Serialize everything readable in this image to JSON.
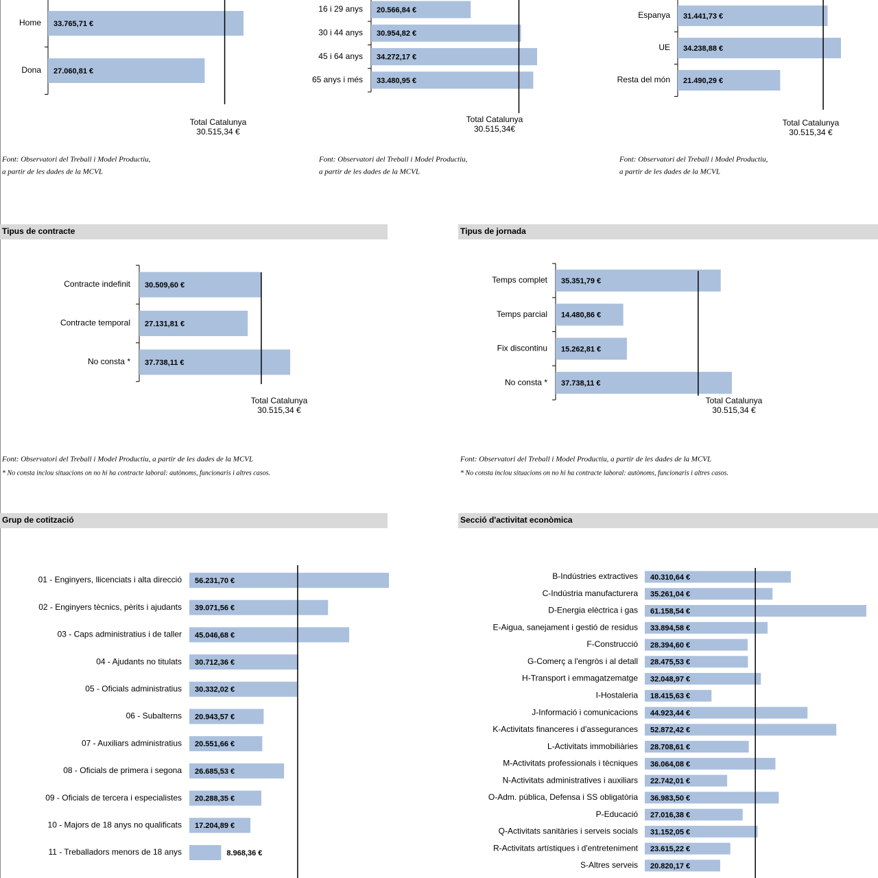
{
  "chart_data": [
    {
      "type": "bar",
      "orientation": "horizontal",
      "color": "#abc0dd",
      "categories": [
        "Home",
        "Dona"
      ],
      "values": [
        33765.71,
        27060.81
      ],
      "value_labels": [
        "33.765,71 €",
        "27.060,81 €"
      ],
      "reference_line": {
        "label": "Total Catalunya",
        "value": 30515.34,
        "value_label": "30.515,34 €"
      },
      "source": [
        "Font: Observatori del Treball i Model Productiu,",
        "a partir de les dades de la MCVL"
      ]
    },
    {
      "type": "bar",
      "orientation": "horizontal",
      "color": "#abc0dd",
      "categories": [
        "16 i 29 anys",
        "30 i 44 anys",
        "45 i 64 anys",
        "65 anys i més"
      ],
      "values": [
        20566.84,
        30954.82,
        34272.17,
        33480.95
      ],
      "value_labels": [
        "20.566,84 €",
        "30.954,82 €",
        "34.272,17 €",
        "33.480,95 €"
      ],
      "reference_line": {
        "label": "Total Catalunya",
        "value": 30515.34,
        "value_label": "30.515,34€"
      },
      "source": [
        "Font: Observatori del Treball i Model Productiu,",
        "a partir de les dades de la MCVL"
      ]
    },
    {
      "type": "bar",
      "orientation": "horizontal",
      "color": "#abc0dd",
      "categories": [
        "Espanya",
        "UE",
        "Resta del món"
      ],
      "values": [
        31441.73,
        34238.88,
        21490.29
      ],
      "value_labels": [
        "31.441,73 €",
        "34.238,88 €",
        "21.490,29 €"
      ],
      "reference_line": {
        "label": "Total Catalunya",
        "value": 30515.34,
        "value_label": "30.515,34 €"
      },
      "source": [
        "Font: Observatori del Treball i Model Productiu,",
        "a partir de les dades de la MCVL"
      ]
    },
    {
      "type": "bar",
      "orientation": "horizontal",
      "color": "#abc0dd",
      "title": "Tipus de contracte",
      "categories": [
        "Contracte indefinit",
        "Contracte temporal",
        "No consta *"
      ],
      "values": [
        30509.6,
        27131.81,
        37738.11
      ],
      "value_labels": [
        "30.509,60 €",
        "27.131,81 €",
        "37.738,11 €"
      ],
      "reference_line": {
        "label": "Total Catalunya",
        "value": 30515.34,
        "value_label": "30.515,34 €"
      },
      "source": [
        "Font: Observatori del Treball i Model Productiu, a partir de les dades de la MCVL",
        "* No consta inclou situacions on no hi ha contracte laboral: autònoms, funcionaris i altres casos."
      ]
    },
    {
      "type": "bar",
      "orientation": "horizontal",
      "color": "#abc0dd",
      "title": "Tipus de jornada",
      "categories": [
        "Temps complet",
        "Temps parcial",
        "Fix discontinu",
        "No consta *"
      ],
      "values": [
        35351.79,
        14480.86,
        15262.81,
        37738.11
      ],
      "value_labels": [
        "35.351,79 €",
        "14.480,86 €",
        "15.262,81 €",
        "37.738,11 €"
      ],
      "reference_line": {
        "label": "Total Catalunya",
        "value": 30515.34,
        "value_label": "30.515,34 €"
      },
      "source": [
        "Font: Observatori del Treball i Model Productiu, a partir de les dades de la MCVL",
        "* No consta inclou situacions on no hi ha contracte laboral: autònoms, funcionaris i altres casos."
      ]
    },
    {
      "type": "bar",
      "orientation": "horizontal",
      "color": "#abc0dd",
      "title": "Grup de cotització",
      "categories": [
        "01 - Enginyers, llicenciats i alta direcció",
        "02 - Enginyers tècnics, pèrits i ajudants",
        "03 - Caps administratius i de taller",
        "04 - Ajudants no titulats",
        "05 - Oficials administratius",
        "06 - Subalterns",
        "07 - Auxiliars administratius",
        "08 - Oficials de primera i segona",
        "09 - Oficials de tercera i especialistes",
        "10 - Majors de 18 anys no qualificats",
        "11 - Treballadors menors de 18 anys"
      ],
      "values": [
        56231.7,
        39071.56,
        45046.68,
        30712.36,
        30332.02,
        20943.57,
        20551.66,
        26685.53,
        20288.35,
        17204.89,
        8968.36
      ],
      "value_labels": [
        "56.231,70 €",
        "39.071,56 €",
        "45.046,68 €",
        "30.712,36 €",
        "30.332,02 €",
        "20.943,57 €",
        "20.551,66 €",
        "26.685,53 €",
        "20.288,35 €",
        "17.204,89 €",
        "8.968,36 €"
      ],
      "reference_line": {
        "value": 30515.34
      }
    },
    {
      "type": "bar",
      "orientation": "horizontal",
      "color": "#abc0dd",
      "title": "Secció d'activitat econòmica",
      "categories": [
        "B-Indústries extractives",
        "C-Indústria manufacturera",
        "D-Energia elèctrica i gas",
        "E-Aigua, sanejament i gestió de residus",
        "F-Construcció",
        "G-Comerç a l'engròs i al detall",
        "H-Transport i emmagatzematge",
        "I-Hostaleria",
        "J-Informació i comunicacions",
        "K-Activitats financeres i d'assegurances",
        "L-Activitats immobiliàries",
        "M-Activitats professionals i tècniques",
        "N-Activitats administratives i auxiliars",
        "O-Adm. pública, Defensa i SS obligatòria",
        "P-Educació",
        "Q-Activitats sanitàries i serveis socials",
        "R-Activitats artístiques i d'entreteniment",
        "S-Altres serveis"
      ],
      "values": [
        40310.64,
        35261.04,
        61158.54,
        33894.58,
        28394.6,
        28475.53,
        32048.97,
        18415.63,
        44923.44,
        52872.42,
        28708.61,
        36064.08,
        22742.01,
        36983.5,
        27016.38,
        31152.05,
        23615.22,
        20820.17
      ],
      "value_labels": [
        "40.310,64 €",
        "35.261,04 €",
        "61.158,54 €",
        "33.894,58 €",
        "28.394,60 €",
        "28.475,53 €",
        "32.048,97 €",
        "18.415,63 €",
        "44.923,44 €",
        "52.872,42 €",
        "28.708,61 €",
        "36.064,08 €",
        "22.742,01 €",
        "36.983,50 €",
        "27.016,38 €",
        "31.152,05 €",
        "23.615,22 €",
        "20.820,17 €"
      ],
      "reference_line": {
        "value": 30515.34
      }
    }
  ]
}
